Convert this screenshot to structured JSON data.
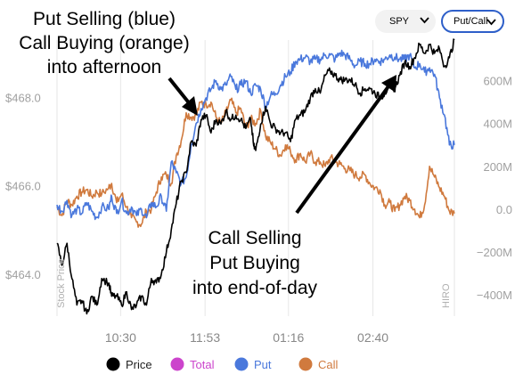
{
  "controls": {
    "symbol_select": "SPY",
    "mode_select": "Put/Call"
  },
  "annotations": {
    "top": [
      "Put Selling (blue)",
      "Call Buying (orange)",
      "into afternoon"
    ],
    "bottom": [
      "Call Selling",
      "Put Buying",
      "into end-of-day"
    ]
  },
  "colors": {
    "price": "#000000",
    "total": "#cc44cc",
    "put": "#4a78dc",
    "call": "#d07a3e",
    "grid": "#e6e6e6",
    "tick": "#a0a0a0"
  },
  "icons": [
    "chevron-down-icon",
    "arrow-icon"
  ],
  "chart_data": {
    "type": "line",
    "left_axis_vertical_label": "Stock Price",
    "right_axis_vertical_label": "HIRO",
    "x_ticks": [
      "10:30",
      "11:53",
      "01:16",
      "02:40"
    ],
    "y_left_ticks": [
      "$468.0",
      "$466.0",
      "$464.0"
    ],
    "y_left_values": [
      468.0,
      466.0,
      464.0
    ],
    "y_left_range": [
      463.05,
      469.3
    ],
    "y_right_ticks": [
      "600M",
      "400M",
      "200M",
      "0.0",
      "−200M",
      "−400M"
    ],
    "y_right_values": [
      600,
      400,
      200,
      0,
      -200,
      -400
    ],
    "y_right_range": [
      -500,
      790
    ],
    "x_range": [
      0,
      400
    ],
    "x_tick_positions": [
      64,
      149,
      233,
      318
    ],
    "legend": [
      {
        "label": "Price",
        "key": "price"
      },
      {
        "label": "Total",
        "key": "total"
      },
      {
        "label": "Put",
        "key": "put"
      },
      {
        "label": "Call",
        "key": "call"
      }
    ],
    "series": [
      {
        "name": "Price",
        "axis": "left",
        "points": [
          [
            0,
            464.7
          ],
          [
            5,
            464.2
          ],
          [
            10,
            464.7
          ],
          [
            15,
            463.9
          ],
          [
            20,
            463.3
          ],
          [
            25,
            463.4
          ],
          [
            30,
            463.1
          ],
          [
            35,
            463.5
          ],
          [
            40,
            463.3
          ],
          [
            45,
            463.9
          ],
          [
            52,
            463.8
          ],
          [
            55,
            463.5
          ],
          [
            60,
            463.5
          ],
          [
            65,
            463.3
          ],
          [
            70,
            463.6
          ],
          [
            75,
            463.2
          ],
          [
            80,
            463.3
          ],
          [
            85,
            463.5
          ],
          [
            90,
            463.3
          ],
          [
            95,
            463.9
          ],
          [
            100,
            463.8
          ],
          [
            105,
            464.0
          ],
          [
            110,
            464.5
          ],
          [
            115,
            465.0
          ],
          [
            120,
            465.6
          ],
          [
            125,
            466.1
          ],
          [
            130,
            466.3
          ],
          [
            135,
            467.0
          ],
          [
            140,
            466.9
          ],
          [
            145,
            467.5
          ],
          [
            150,
            467.6
          ],
          [
            155,
            467.2
          ],
          [
            160,
            467.5
          ],
          [
            165,
            467.4
          ],
          [
            170,
            467.7
          ],
          [
            175,
            467.5
          ],
          [
            180,
            467.6
          ],
          [
            185,
            467.5
          ],
          [
            190,
            467.3
          ],
          [
            195,
            467.5
          ],
          [
            198,
            466.9
          ],
          [
            200,
            466.8
          ],
          [
            205,
            467.4
          ],
          [
            210,
            467.8
          ],
          [
            215,
            467.4
          ],
          [
            220,
            467.3
          ],
          [
            225,
            467.2
          ],
          [
            230,
            467.2
          ],
          [
            235,
            467.0
          ],
          [
            240,
            467.5
          ],
          [
            245,
            467.6
          ],
          [
            250,
            467.7
          ],
          [
            255,
            468.0
          ],
          [
            260,
            468.2
          ],
          [
            265,
            468.1
          ],
          [
            270,
            468.5
          ],
          [
            275,
            468.6
          ],
          [
            280,
            468.5
          ],
          [
            285,
            468.4
          ],
          [
            290,
            468.4
          ],
          [
            295,
            468.4
          ],
          [
            300,
            468.3
          ],
          [
            305,
            468.1
          ],
          [
            310,
            468.2
          ],
          [
            315,
            468.2
          ],
          [
            320,
            468.1
          ],
          [
            325,
            468.0
          ],
          [
            330,
            468.1
          ],
          [
            335,
            468.3
          ],
          [
            340,
            468.2
          ],
          [
            345,
            468.5
          ],
          [
            350,
            468.8
          ],
          [
            355,
            468.7
          ],
          [
            360,
            468.9
          ],
          [
            365,
            469.2
          ],
          [
            370,
            469.0
          ],
          [
            375,
            469.2
          ],
          [
            380,
            469.0
          ],
          [
            385,
            469.1
          ],
          [
            390,
            468.7
          ],
          [
            395,
            468.9
          ],
          [
            400,
            469.3
          ]
        ]
      },
      {
        "name": "Put",
        "axis": "right",
        "points": [
          [
            0,
            20
          ],
          [
            5,
            -10
          ],
          [
            10,
            40
          ],
          [
            15,
            -30
          ],
          [
            20,
            0
          ],
          [
            25,
            -20
          ],
          [
            30,
            30
          ],
          [
            35,
            -10
          ],
          [
            40,
            -40
          ],
          [
            45,
            10
          ],
          [
            52,
            0
          ],
          [
            55,
            60
          ],
          [
            60,
            -20
          ],
          [
            65,
            40
          ],
          [
            70,
            -20
          ],
          [
            75,
            10
          ],
          [
            80,
            -30
          ],
          [
            85,
            0
          ],
          [
            90,
            -40
          ],
          [
            95,
            30
          ],
          [
            100,
            10
          ],
          [
            105,
            60
          ],
          [
            110,
            -10
          ],
          [
            115,
            220
          ],
          [
            120,
            170
          ],
          [
            125,
            120
          ],
          [
            130,
            150
          ],
          [
            135,
            300
          ],
          [
            140,
            400
          ],
          [
            145,
            470
          ],
          [
            150,
            520
          ],
          [
            155,
            560
          ],
          [
            160,
            600
          ],
          [
            165,
            560
          ],
          [
            170,
            580
          ],
          [
            175,
            620
          ],
          [
            180,
            560
          ],
          [
            185,
            580
          ],
          [
            190,
            600
          ],
          [
            195,
            540
          ],
          [
            200,
            580
          ],
          [
            205,
            560
          ],
          [
            210,
            480
          ],
          [
            215,
            530
          ],
          [
            220,
            540
          ],
          [
            225,
            580
          ],
          [
            230,
            620
          ],
          [
            235,
            640
          ],
          [
            240,
            690
          ],
          [
            245,
            700
          ],
          [
            250,
            710
          ],
          [
            255,
            690
          ],
          [
            260,
            700
          ],
          [
            265,
            700
          ],
          [
            270,
            720
          ],
          [
            275,
            720
          ],
          [
            280,
            700
          ],
          [
            285,
            730
          ],
          [
            290,
            720
          ],
          [
            295,
            700
          ],
          [
            300,
            670
          ],
          [
            305,
            690
          ],
          [
            310,
            680
          ],
          [
            315,
            680
          ],
          [
            320,
            700
          ],
          [
            325,
            690
          ],
          [
            330,
            700
          ],
          [
            335,
            720
          ],
          [
            340,
            710
          ],
          [
            345,
            700
          ],
          [
            350,
            700
          ],
          [
            355,
            720
          ],
          [
            360,
            660
          ],
          [
            365,
            680
          ],
          [
            370,
            640
          ],
          [
            375,
            660
          ],
          [
            380,
            630
          ],
          [
            385,
            520
          ],
          [
            390,
            440
          ],
          [
            395,
            300
          ],
          [
            400,
            300
          ]
        ]
      },
      {
        "name": "Call",
        "axis": "right",
        "points": [
          [
            0,
            10
          ],
          [
            5,
            -30
          ],
          [
            10,
            40
          ],
          [
            15,
            20
          ],
          [
            20,
            60
          ],
          [
            25,
            80
          ],
          [
            30,
            90
          ],
          [
            35,
            60
          ],
          [
            40,
            80
          ],
          [
            45,
            70
          ],
          [
            52,
            100
          ],
          [
            55,
            120
          ],
          [
            60,
            30
          ],
          [
            65,
            70
          ],
          [
            70,
            10
          ],
          [
            75,
            -40
          ],
          [
            80,
            -60
          ],
          [
            85,
            -70
          ],
          [
            90,
            -10
          ],
          [
            95,
            0
          ],
          [
            100,
            80
          ],
          [
            105,
            150
          ],
          [
            110,
            160
          ],
          [
            115,
            120
          ],
          [
            120,
            250
          ],
          [
            125,
            320
          ],
          [
            130,
            450
          ],
          [
            135,
            430
          ],
          [
            140,
            440
          ],
          [
            145,
            500
          ],
          [
            150,
            490
          ],
          [
            155,
            500
          ],
          [
            160,
            430
          ],
          [
            165,
            400
          ],
          [
            170,
            450
          ],
          [
            175,
            510
          ],
          [
            180,
            450
          ],
          [
            185,
            470
          ],
          [
            190,
            380
          ],
          [
            195,
            420
          ],
          [
            200,
            400
          ],
          [
            205,
            460
          ],
          [
            210,
            340
          ],
          [
            215,
            310
          ],
          [
            220,
            280
          ],
          [
            225,
            250
          ],
          [
            230,
            300
          ],
          [
            235,
            270
          ],
          [
            240,
            230
          ],
          [
            245,
            260
          ],
          [
            250,
            220
          ],
          [
            255,
            260
          ],
          [
            260,
            220
          ],
          [
            265,
            220
          ],
          [
            270,
            200
          ],
          [
            275,
            240
          ],
          [
            280,
            220
          ],
          [
            285,
            210
          ],
          [
            290,
            190
          ],
          [
            295,
            180
          ],
          [
            300,
            160
          ],
          [
            305,
            150
          ],
          [
            310,
            160
          ],
          [
            315,
            120
          ],
          [
            320,
            100
          ],
          [
            325,
            90
          ],
          [
            330,
            20
          ],
          [
            335,
            30
          ],
          [
            340,
            -10
          ],
          [
            345,
            20
          ],
          [
            350,
            60
          ],
          [
            355,
            40
          ],
          [
            360,
            0
          ],
          [
            365,
            -40
          ],
          [
            370,
            20
          ],
          [
            375,
            200
          ],
          [
            380,
            150
          ],
          [
            385,
            100
          ],
          [
            390,
            60
          ],
          [
            395,
            -10
          ],
          [
            400,
            -20
          ]
        ]
      }
    ]
  }
}
